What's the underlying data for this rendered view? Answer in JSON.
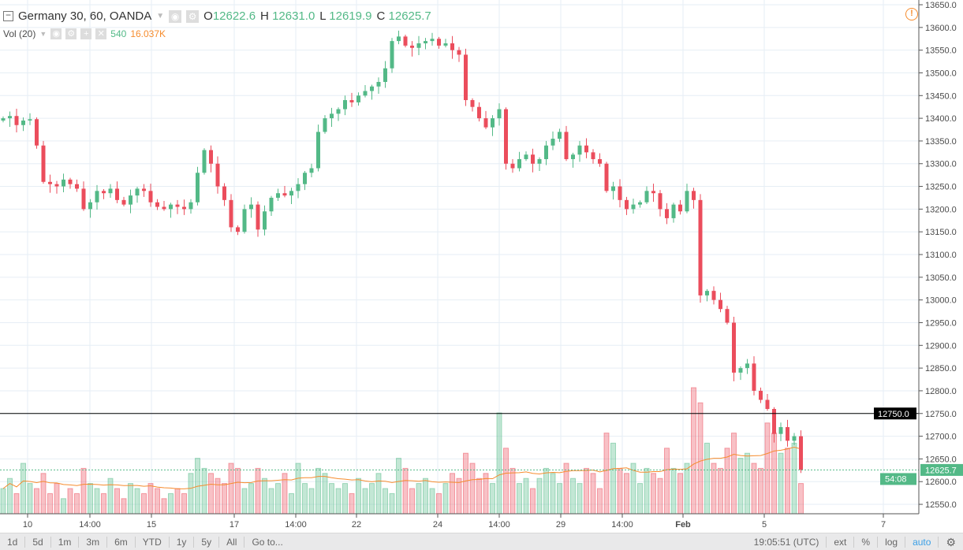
{
  "legend": {
    "symbol": "Germany 30, 60, OANDA",
    "o_label": "O",
    "o": "12622.6",
    "h_label": "H",
    "h": "12631.0",
    "l_label": "L",
    "l": "12619.9",
    "c_label": "C",
    "c": "12625.7"
  },
  "volume_legend": {
    "label": "Vol (20)",
    "value": "540",
    "ma": "16.037K"
  },
  "toolbar": {
    "ranges": [
      "1d",
      "5d",
      "1m",
      "3m",
      "6m",
      "YTD",
      "1y",
      "5y",
      "All",
      "Go to..."
    ],
    "time": "19:05:51 (UTC)",
    "ext": "ext",
    "percent": "%",
    "log": "log",
    "auto": "auto"
  },
  "colors": {
    "up": "#53b987",
    "down": "#eb4d5c",
    "vol_ma": "#f68c2e",
    "line": "#000000"
  },
  "chart_data": {
    "type": "candlestick",
    "price_ticks": [
      12550,
      12600,
      12650,
      12700,
      12750,
      12800,
      12850,
      12900,
      12950,
      13000,
      13050,
      13100,
      13150,
      13200,
      13250,
      13300,
      13350,
      13400,
      13450,
      13500,
      13550,
      13600,
      13650
    ],
    "ylim": [
      12550,
      13650
    ],
    "time_ticks": [
      "10",
      "14:00",
      "15",
      "17",
      "14:00",
      "22",
      "24",
      "14:00",
      "29",
      "14:00",
      "Feb",
      "5",
      "7"
    ],
    "horizontal_line": "12750.0",
    "last_price": "12625.7",
    "countdown": "54:08",
    "open_start": 13395,
    "closes": [
      13400,
      13405,
      13385,
      13395,
      13398,
      13340,
      13260,
      13255,
      13250,
      13265,
      13255,
      13245,
      13200,
      13215,
      13240,
      13235,
      13245,
      13220,
      13210,
      13230,
      13245,
      13240,
      13215,
      13205,
      13200,
      13210,
      13205,
      13200,
      13215,
      13280,
      13330,
      13300,
      13250,
      13220,
      13160,
      13150,
      13200,
      13210,
      13155,
      13195,
      13225,
      13235,
      13230,
      13240,
      13255,
      13280,
      13290,
      13370,
      13400,
      13410,
      13420,
      13440,
      13435,
      13450,
      13460,
      13470,
      13480,
      13510,
      13570,
      13580,
      13560,
      13555,
      13565,
      13570,
      13575,
      13560,
      13565,
      13550,
      13540,
      13440,
      13425,
      13400,
      13380,
      13400,
      13420,
      13300,
      13290,
      13310,
      13320,
      13300,
      13310,
      13340,
      13355,
      13370,
      13310,
      13320,
      13340,
      13325,
      13310,
      13300,
      13240,
      13250,
      13220,
      13200,
      13210,
      13215,
      13240,
      13235,
      13200,
      13180,
      13210,
      13195,
      13240,
      13220,
      13010,
      13020,
      13000,
      12980,
      12950,
      12840,
      12850,
      12860,
      12800,
      12780,
      12760,
      12705,
      12720,
      12690,
      12700,
      12626
    ],
    "volumes_k": [
      5,
      7,
      4,
      10,
      6,
      5,
      8,
      4,
      6,
      3,
      5,
      4,
      9,
      6,
      5,
      4,
      7,
      5,
      3,
      6,
      5,
      4,
      6,
      5,
      3,
      4,
      5,
      4,
      8,
      11,
      9,
      8,
      7,
      6,
      10,
      9,
      5,
      6,
      9,
      7,
      5,
      6,
      8,
      4,
      10,
      6,
      5,
      9,
      8,
      6,
      5,
      6,
      4,
      7,
      5,
      6,
      8,
      5,
      4,
      11,
      9,
      5,
      6,
      7,
      5,
      4,
      6,
      8,
      7,
      12,
      10,
      7,
      8,
      6,
      20,
      13,
      9,
      6,
      7,
      5,
      7,
      9,
      8,
      6,
      10,
      7,
      6,
      9,
      8,
      5,
      16,
      14,
      9,
      8,
      10,
      6,
      9,
      8,
      7,
      13,
      9,
      8,
      10,
      25,
      22,
      14,
      10,
      9,
      13,
      16,
      11,
      12,
      10,
      9,
      18,
      16,
      12,
      13,
      14,
      6
    ]
  }
}
